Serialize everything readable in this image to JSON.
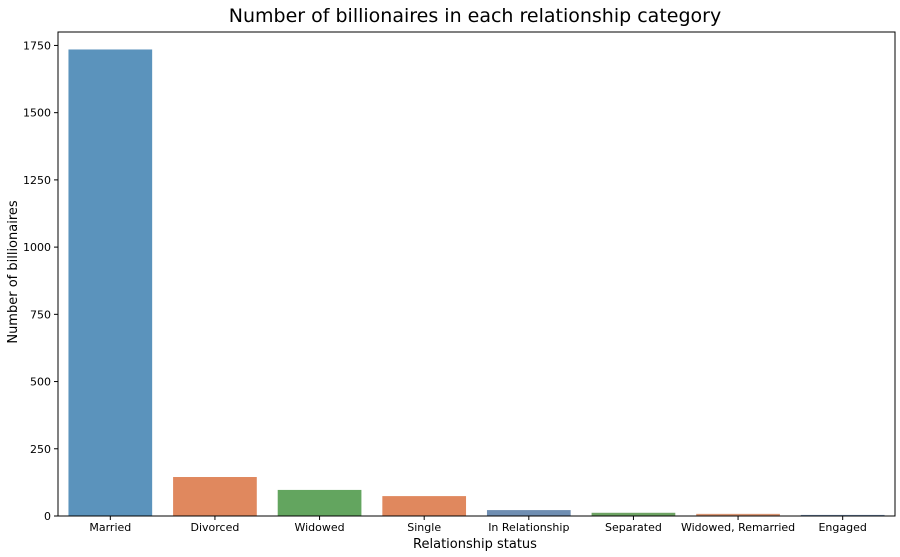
{
  "chart_data": {
    "type": "bar",
    "title": "Number of billionaires in each relationship category",
    "xlabel": "Relationship status",
    "ylabel": "Number of billionaires",
    "categories": [
      "Married",
      "Divorced",
      "Widowed",
      "Single",
      "In Relationship",
      "Separated",
      "Widowed, Remarried",
      "Engaged"
    ],
    "values": [
      1735,
      145,
      97,
      74,
      22,
      12,
      8,
      4
    ],
    "colors": [
      "#5b93bc",
      "#e0885e",
      "#63a55f",
      "#e0885e",
      "#6f8eb2",
      "#6ea464",
      "#d99572",
      "#6f8eb2"
    ],
    "ylim": [
      0,
      1800
    ],
    "yticks": [
      0,
      250,
      500,
      750,
      1000,
      1250,
      1500,
      1750
    ],
    "grid": false,
    "legend": "none"
  }
}
